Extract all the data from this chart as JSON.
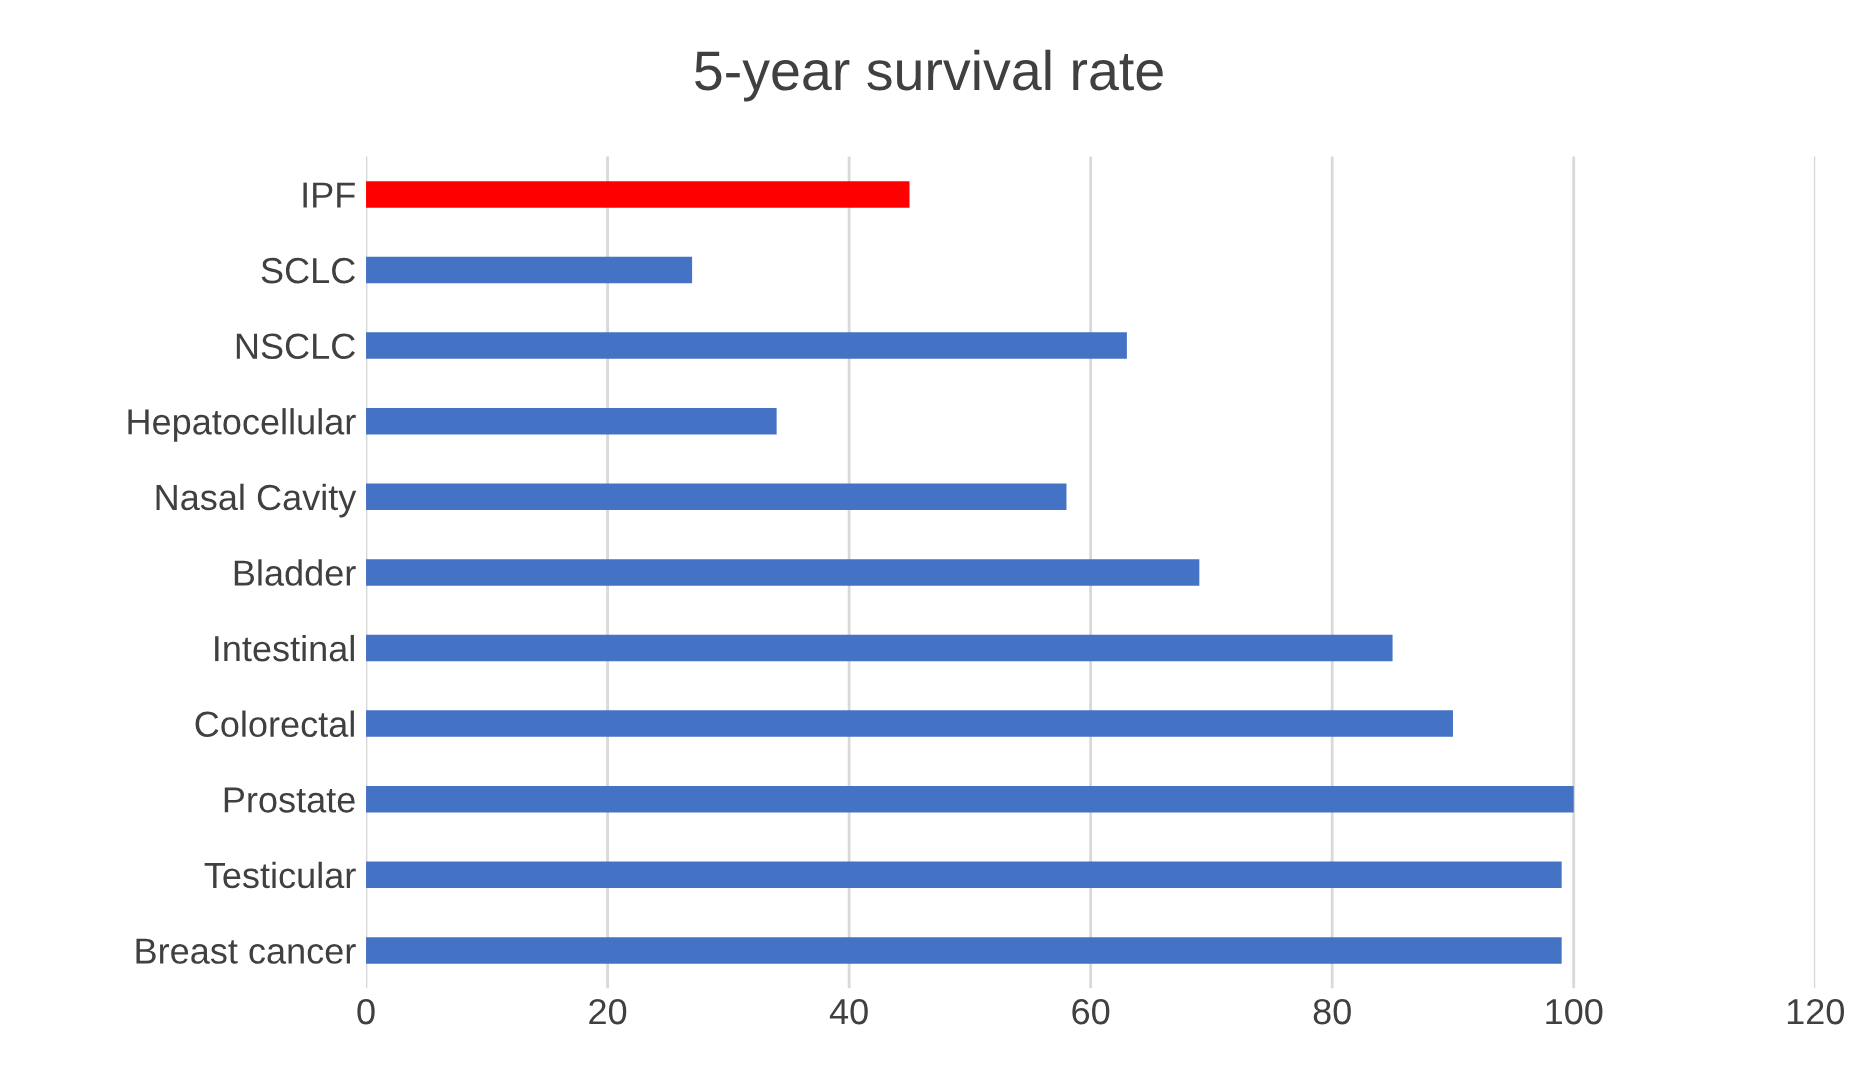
{
  "chart_data": {
    "type": "bar",
    "orientation": "horizontal",
    "title": "5-year survival rate",
    "categories": [
      "IPF",
      "SCLC",
      "NSCLC",
      "Hepatocellular",
      "Nasal Cavity",
      "Bladder",
      "Intestinal",
      "Colorectal",
      "Prostate",
      "Testicular",
      "Breast cancer"
    ],
    "values": [
      45,
      27,
      63,
      34,
      58,
      69,
      85,
      90,
      100,
      99,
      99
    ],
    "colors": [
      "#ff0000",
      "#4472c4",
      "#4472c4",
      "#4472c4",
      "#4472c4",
      "#4472c4",
      "#4472c4",
      "#4472c4",
      "#4472c4",
      "#4472c4",
      "#4472c4"
    ],
    "xlim": [
      0,
      120
    ],
    "xticks": [
      0,
      20,
      40,
      60,
      80,
      100,
      120
    ],
    "grid": "x"
  }
}
